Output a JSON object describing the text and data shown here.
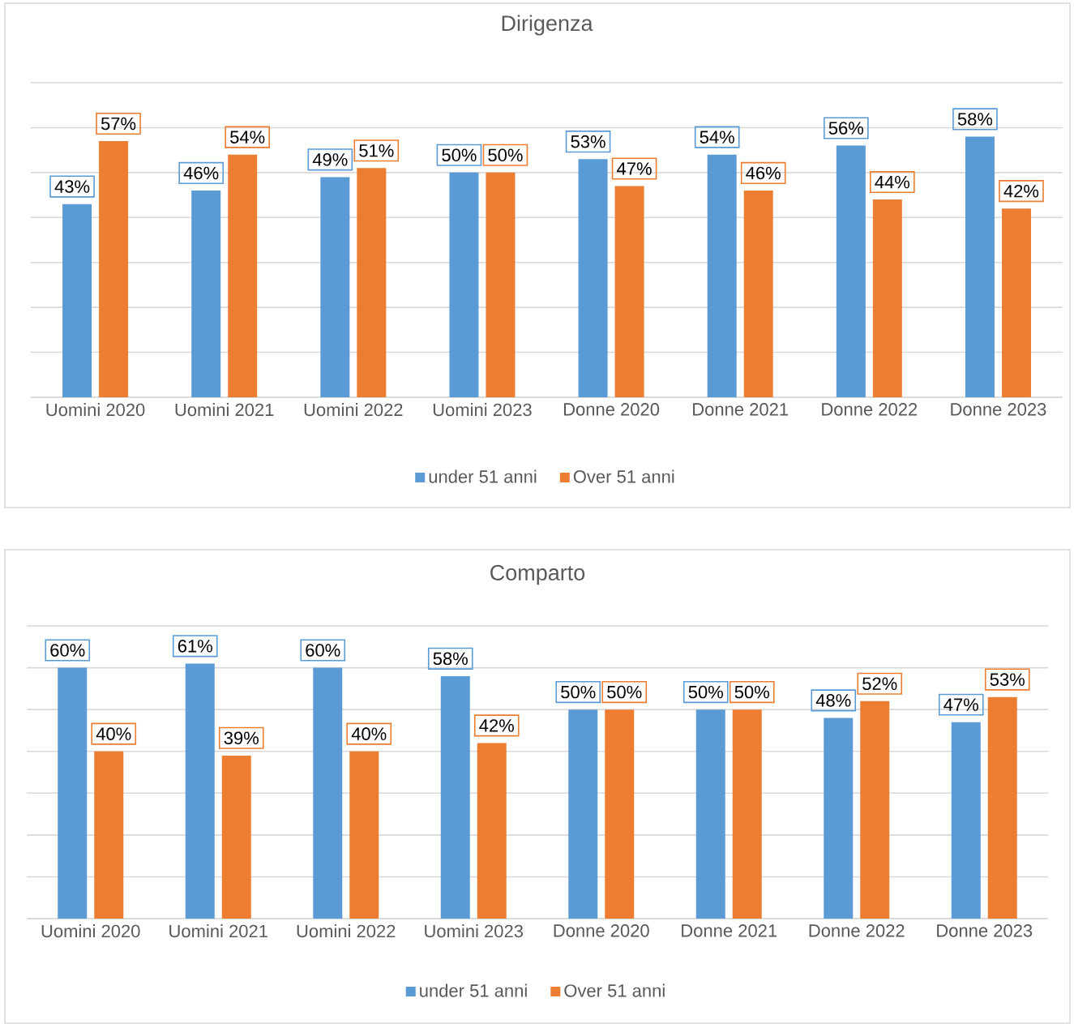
{
  "chart_data": [
    {
      "type": "bar",
      "title": "Dirigenza",
      "categories": [
        "Uomini 2020",
        "Uomini 2021",
        "Uomini 2022",
        "Uomini 2023",
        "Donne 2020",
        "Donne 2021",
        "Donne 2022",
        "Donne 2023"
      ],
      "series": [
        {
          "name": "under 51 anni",
          "color": "#5b9bd5",
          "values": [
            43,
            46,
            49,
            50,
            53,
            54,
            56,
            58
          ],
          "value_labels": [
            "43%",
            "46%",
            "49%",
            "50%",
            "53%",
            "54%",
            "56%",
            "58%"
          ]
        },
        {
          "name": "Over 51 anni",
          "color": "#ed7d31",
          "values": [
            57,
            54,
            51,
            50,
            47,
            46,
            44,
            42
          ],
          "value_labels": [
            "57%",
            "54%",
            "51%",
            "50%",
            "47%",
            "46%",
            "44%",
            "42%"
          ]
        }
      ],
      "ylim": [
        0,
        70
      ],
      "yticks": [
        {
          "value": 0,
          "label": null
        },
        {
          "value": 10,
          "label": null
        },
        {
          "value": 20,
          "label": null
        },
        {
          "value": 30,
          "label": null
        },
        {
          "value": 40,
          "label": null
        },
        {
          "value": 50,
          "label": null
        },
        {
          "value": 60,
          "label": null
        },
        {
          "value": 70,
          "label": null
        }
      ],
      "grid": "y",
      "legend": "bottom",
      "tick_labels": "x"
    },
    {
      "type": "bar",
      "title": "Comparto",
      "categories": [
        "Uomini 2020",
        "Uomini 2021",
        "Uomini 2022",
        "Uomini 2023",
        "Donne 2020",
        "Donne 2021",
        "Donne 2022",
        "Donne 2023"
      ],
      "series": [
        {
          "name": "under 51 anni",
          "color": "#5b9bd5",
          "values": [
            60,
            61,
            60,
            58,
            50,
            50,
            48,
            47
          ],
          "value_labels": [
            "60%",
            "61%",
            "60%",
            "58%",
            "50%",
            "50%",
            "48%",
            "47%"
          ]
        },
        {
          "name": "Over 51 anni",
          "color": "#ed7d31",
          "values": [
            40,
            39,
            40,
            42,
            50,
            50,
            52,
            53
          ],
          "value_labels": [
            "40%",
            "39%",
            "40%",
            "42%",
            "50%",
            "50%",
            "52%",
            "53%"
          ]
        }
      ],
      "ylim": [
        0,
        70
      ],
      "yticks": [
        {
          "value": 0,
          "label": null
        },
        {
          "value": 10,
          "label": null
        },
        {
          "value": 20,
          "label": null
        },
        {
          "value": 30,
          "label": null
        },
        {
          "value": 40,
          "label": null
        },
        {
          "value": 50,
          "label": null
        },
        {
          "value": 60,
          "label": null
        },
        {
          "value": 70,
          "label": null
        }
      ],
      "grid": "y",
      "legend": "bottom",
      "tick_labels": "x"
    }
  ]
}
